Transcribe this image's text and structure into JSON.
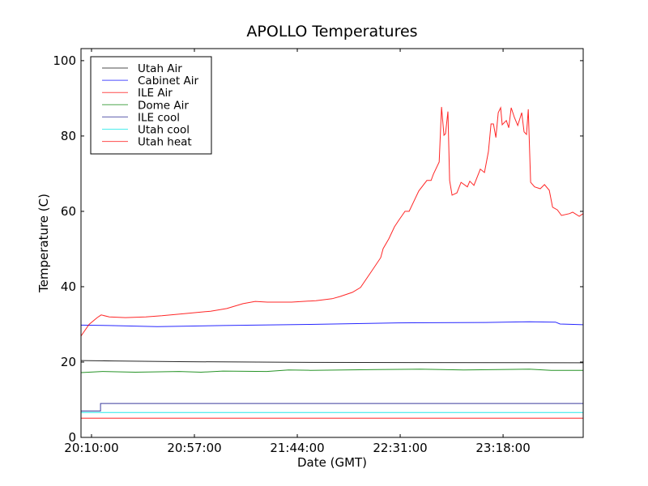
{
  "chart_data": {
    "type": "line",
    "title": "APOLLO Temperatures",
    "xlabel": "Date (GMT)",
    "ylabel": "Temperature (C)",
    "x_units": "minutes since 20:10:00 GMT",
    "xlim": [
      -4.8,
      224.6
    ],
    "ylim": [
      0,
      103.2
    ],
    "xticks": [
      {
        "value": 0,
        "label": "20:10:00"
      },
      {
        "value": 47,
        "label": "20:57:00"
      },
      {
        "value": 94,
        "label": "21:44:00"
      },
      {
        "value": 141,
        "label": "22:31:00"
      },
      {
        "value": 188,
        "label": "23:18:00"
      }
    ],
    "yticks": [
      {
        "value": 0,
        "label": "0"
      },
      {
        "value": 20,
        "label": "20"
      },
      {
        "value": 40,
        "label": "40"
      },
      {
        "value": 60,
        "label": "60"
      },
      {
        "value": 80,
        "label": "80"
      },
      {
        "value": 100,
        "label": "100"
      }
    ],
    "grid": false,
    "legend_position": "top-left",
    "series": [
      {
        "name": "Utah Air",
        "color": "#000000",
        "points": [
          [
            -4.8,
            20.4
          ],
          [
            10,
            20.3
          ],
          [
            40,
            20.1
          ],
          [
            100,
            19.9
          ],
          [
            224.6,
            19.8
          ]
        ]
      },
      {
        "name": "Cabinet Air",
        "color": "#0000ff",
        "points": [
          [
            -4.8,
            29.8
          ],
          [
            8,
            29.7
          ],
          [
            30,
            29.4
          ],
          [
            60,
            29.7
          ],
          [
            100,
            30.0
          ],
          [
            140,
            30.4
          ],
          [
            180,
            30.5
          ],
          [
            200,
            30.7
          ],
          [
            212,
            30.6
          ],
          [
            214,
            30.1
          ],
          [
            224.6,
            29.9
          ]
        ]
      },
      {
        "name": "ILE Air",
        "color": "#ff0000",
        "points": [
          [
            -4.8,
            26.9
          ],
          [
            -1.1,
            30
          ],
          [
            2.6,
            31.8
          ],
          [
            4.4,
            32.5
          ],
          [
            8.1,
            32
          ],
          [
            15.5,
            31.8
          ],
          [
            24.8,
            32
          ],
          [
            32.2,
            32.3
          ],
          [
            43.3,
            32.9
          ],
          [
            54.4,
            33.5
          ],
          [
            61.8,
            34.2
          ],
          [
            69.2,
            35.5
          ],
          [
            74.8,
            36.1
          ],
          [
            80.3,
            35.9
          ],
          [
            91.4,
            35.9
          ],
          [
            102.5,
            36.3
          ],
          [
            109.9,
            36.8
          ],
          [
            113.6,
            37.4
          ],
          [
            119.2,
            38.5
          ],
          [
            122.9,
            39.8
          ],
          [
            128.4,
            44.5
          ],
          [
            132.1,
            47.7
          ],
          [
            133.2,
            50.1
          ],
          [
            135.8,
            52.7
          ],
          [
            138.4,
            55.9
          ],
          [
            140.3,
            57.6
          ],
          [
            143.2,
            60
          ],
          [
            145.1,
            60
          ],
          [
            149.5,
            65.4
          ],
          [
            153.2,
            68.2
          ],
          [
            155.1,
            68.2
          ],
          [
            156.2,
            69.9
          ],
          [
            158.8,
            73.1
          ],
          [
            159.9,
            87.7
          ],
          [
            161.0,
            80.2
          ],
          [
            161.7,
            80.6
          ],
          [
            162.8,
            86.5
          ],
          [
            163.6,
            68.2
          ],
          [
            164.7,
            64.3
          ],
          [
            166.9,
            64.9
          ],
          [
            168.8,
            67.7
          ],
          [
            171.7,
            66.5
          ],
          [
            172.8,
            68
          ],
          [
            174.7,
            66.9
          ],
          [
            177.6,
            71.2
          ],
          [
            179.5,
            70.3
          ],
          [
            181.3,
            75.9
          ],
          [
            182.5,
            83.2
          ],
          [
            183.6,
            83.2
          ],
          [
            184.7,
            79.6
          ],
          [
            185.8,
            86.2
          ],
          [
            186.9,
            87.5
          ],
          [
            187.6,
            83
          ],
          [
            189.5,
            84.1
          ],
          [
            190.6,
            82.2
          ],
          [
            191.7,
            87.5
          ],
          [
            193.2,
            84.9
          ],
          [
            194.7,
            82.8
          ],
          [
            196.5,
            86.2
          ],
          [
            197.6,
            81.1
          ],
          [
            198.7,
            80.4
          ],
          [
            199.5,
            87.1
          ],
          [
            200.6,
            67.7
          ],
          [
            202.4,
            66.5
          ],
          [
            205.0,
            66
          ],
          [
            206.9,
            67.1
          ],
          [
            209.1,
            65.6
          ],
          [
            210.6,
            61.1
          ],
          [
            212.8,
            60.4
          ],
          [
            214.7,
            58.9
          ],
          [
            218.4,
            59.4
          ],
          [
            219.8,
            59.8
          ],
          [
            222.8,
            58.7
          ],
          [
            224.6,
            59.4
          ]
        ]
      },
      {
        "name": "Dome Air",
        "color": "#008000",
        "points": [
          [
            -4.8,
            17.2
          ],
          [
            5,
            17.5
          ],
          [
            20,
            17.3
          ],
          [
            40,
            17.5
          ],
          [
            50,
            17.3
          ],
          [
            60,
            17.6
          ],
          [
            80,
            17.5
          ],
          [
            90,
            17.9
          ],
          [
            100,
            17.8
          ],
          [
            130,
            18.0
          ],
          [
            150,
            18.1
          ],
          [
            170,
            17.9
          ],
          [
            200,
            18.1
          ],
          [
            210,
            17.8
          ],
          [
            224.6,
            17.8
          ]
        ]
      },
      {
        "name": "ILE cool",
        "color": "#1a1a8c",
        "points": [
          [
            -4.8,
            7
          ],
          [
            4.1,
            7
          ],
          [
            4.1,
            9
          ],
          [
            224.6,
            9
          ]
        ]
      },
      {
        "name": "Utah cool",
        "color": "#00e5e5",
        "points": [
          [
            -4.8,
            6.6
          ],
          [
            224.6,
            6.6
          ]
        ]
      },
      {
        "name": "Utah heat",
        "color": "#ff0000",
        "points": [
          [
            -4.8,
            5.1
          ],
          [
            224.6,
            5.1
          ]
        ]
      }
    ]
  }
}
